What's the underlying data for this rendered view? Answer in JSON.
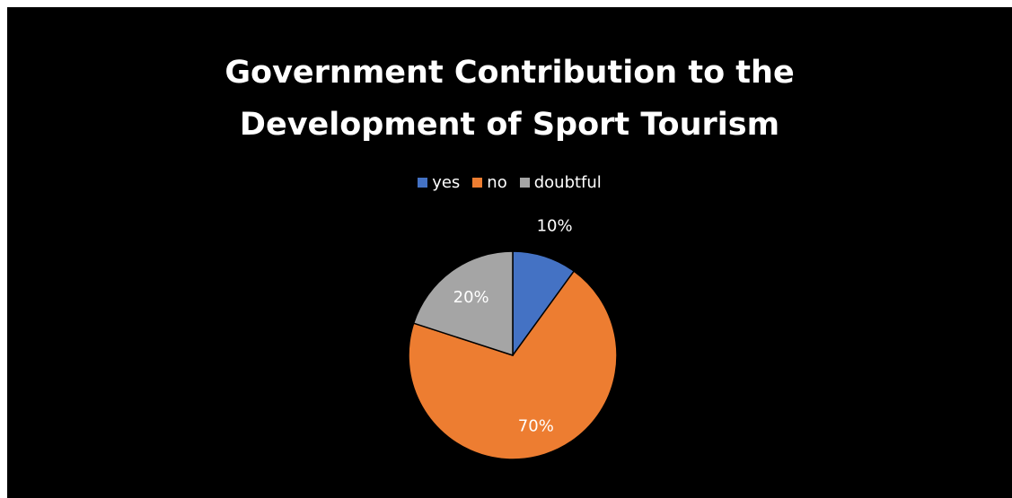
{
  "chart_data": {
    "type": "pie",
    "title_lines": [
      "Government Contribution to the",
      "Development of Sport Tourism"
    ],
    "categories": [
      "yes",
      "no",
      "doubtful"
    ],
    "values": [
      10,
      70,
      20
    ],
    "labels": [
      "10%",
      "70%",
      "20%"
    ],
    "colors": [
      "#4472C4",
      "#ED7D31",
      "#A5A5A5"
    ],
    "label_colors": [
      "#ffffff",
      "#ffffff",
      "#ffffff"
    ],
    "background": "#000000",
    "legend_position": "top"
  }
}
